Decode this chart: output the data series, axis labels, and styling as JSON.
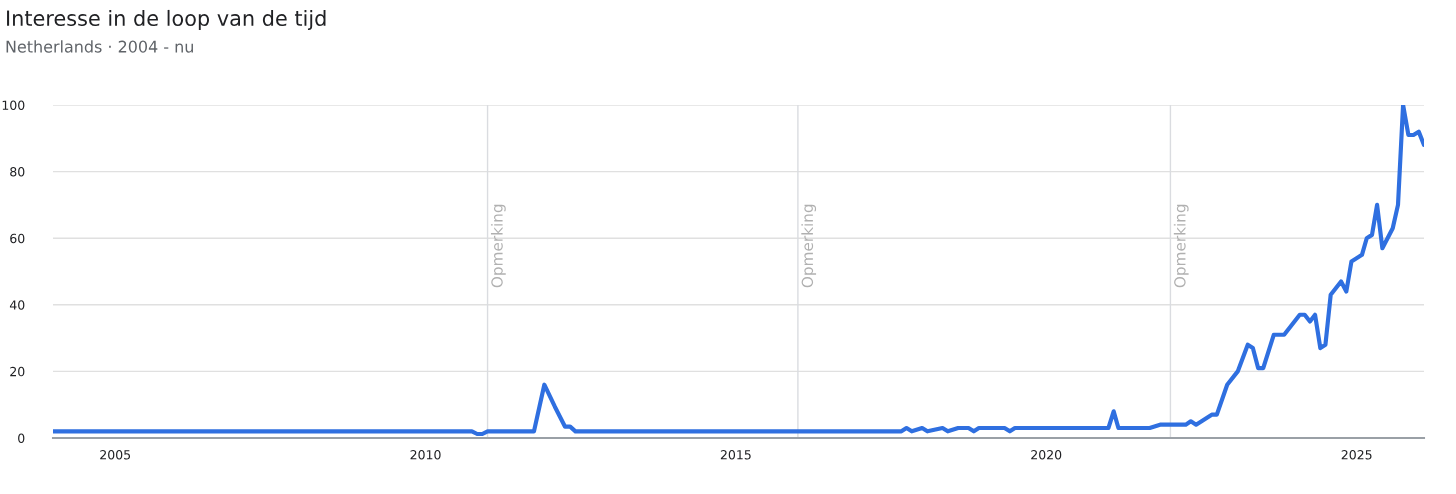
{
  "chart_data": {
    "type": "line",
    "title": "Interesse in de loop van de tijd",
    "subtitle": "Netherlands · 2004 - nu",
    "x": [
      "2004-01",
      "2010-10",
      "2010-11",
      "2010-12",
      "2011-01",
      "2011-10",
      "2011-12",
      "2012-02",
      "2012-04",
      "2012-05",
      "2012-06",
      "2017-09",
      "2017-10",
      "2017-11",
      "2018-01",
      "2018-02",
      "2018-05",
      "2018-06",
      "2018-08",
      "2018-10",
      "2018-11",
      "2018-12",
      "2019-05",
      "2019-06",
      "2019-07",
      "2021-01",
      "2021-02",
      "2021-03",
      "2021-09",
      "2021-11",
      "2022-04",
      "2022-05",
      "2022-06",
      "2022-09",
      "2022-10",
      "2022-12",
      "2023-02",
      "2023-04",
      "2023-05",
      "2023-06",
      "2023-07",
      "2023-09",
      "2023-11",
      "2024-02",
      "2024-03",
      "2024-04",
      "2024-05",
      "2024-06",
      "2024-07",
      "2024-08",
      "2024-10",
      "2024-11",
      "2024-12",
      "2025-02",
      "2025-03",
      "2025-04",
      "2025-05",
      "2025-06",
      "2025-08",
      "2025-09",
      "2025-10",
      "2025-11",
      "2025-12",
      "2026-01",
      "2026-02"
    ],
    "series": [
      {
        "color": "#2f6fe0",
        "values": [
          2,
          2,
          1.2,
          1.2,
          2,
          2,
          16,
          9.4,
          3.4,
          3.4,
          2,
          2,
          3,
          2,
          3,
          2,
          3,
          2,
          3,
          3,
          2,
          3,
          3,
          2,
          3,
          3,
          8,
          3,
          3,
          4,
          4,
          5,
          4,
          7,
          7,
          16,
          20,
          28,
          27,
          21,
          21,
          31,
          31,
          37,
          37,
          35,
          37,
          27,
          28,
          43,
          47,
          44,
          53,
          55,
          60,
          61,
          70,
          57,
          63,
          70,
          100,
          91,
          91,
          92,
          88
        ]
      }
    ],
    "xlim": [
      "2004-01",
      "2026-02"
    ],
    "xticks": [
      {
        "value": "2005",
        "label": "2005"
      },
      {
        "value": "2010",
        "label": "2010"
      },
      {
        "value": "2015",
        "label": "2015"
      },
      {
        "value": "2020",
        "label": "2020"
      },
      {
        "value": "2025",
        "label": "2025"
      }
    ],
    "ylim": [
      0,
      100
    ],
    "yticks": [
      0,
      20,
      40,
      60,
      80,
      100
    ],
    "grid": "y",
    "marker": "none",
    "line_style": "solid",
    "legend": false,
    "ref_lines": [
      {
        "axis": "x",
        "value": "2011-01",
        "label": "Opmerking",
        "color": "#dadce0"
      },
      {
        "axis": "x",
        "value": "2016-01",
        "label": "Opmerking",
        "color": "#dadce0"
      },
      {
        "axis": "x",
        "value": "2022-01",
        "label": "Opmerking",
        "color": "#dadce0"
      }
    ]
  }
}
